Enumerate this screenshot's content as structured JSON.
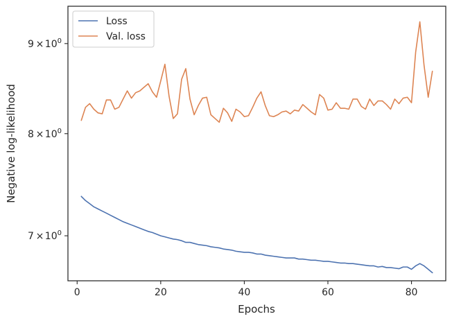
{
  "chart_data": {
    "type": "line",
    "xlabel": "Epochs",
    "ylabel": "Negative log-likelihood",
    "xlim": [
      -2.2,
      88.2
    ],
    "ylim": [
      6.6,
      9.45
    ],
    "y_scale": "log",
    "x_ticks": [
      {
        "value": 0,
        "label": "0"
      },
      {
        "value": 20,
        "label": "20"
      },
      {
        "value": 40,
        "label": "40"
      },
      {
        "value": 60,
        "label": "60"
      },
      {
        "value": 80,
        "label": "80"
      }
    ],
    "y_ticks": [
      {
        "value": 7,
        "base": "7",
        "mult": "10",
        "exp": "0"
      },
      {
        "value": 8,
        "base": "8",
        "mult": "10",
        "exp": "0"
      },
      {
        "value": 9,
        "base": "9",
        "mult": "10",
        "exp": "0"
      }
    ],
    "legend": {
      "position": "upper-left"
    },
    "grid": false,
    "x": [
      1,
      2,
      3,
      4,
      5,
      6,
      7,
      8,
      9,
      10,
      11,
      12,
      13,
      14,
      15,
      16,
      17,
      18,
      19,
      20,
      21,
      22,
      23,
      24,
      25,
      26,
      27,
      28,
      29,
      30,
      31,
      32,
      33,
      34,
      35,
      36,
      37,
      38,
      39,
      40,
      41,
      42,
      43,
      44,
      45,
      46,
      47,
      48,
      49,
      50,
      51,
      52,
      53,
      54,
      55,
      56,
      57,
      58,
      59,
      60,
      61,
      62,
      63,
      64,
      65,
      66,
      67,
      68,
      69,
      70,
      71,
      72,
      73,
      74,
      75,
      76,
      77,
      78,
      79,
      80,
      81,
      82,
      83,
      84,
      85
    ],
    "series": [
      {
        "name": "Loss",
        "color": "#4c72b0",
        "values": [
          7.37,
          7.33,
          7.3,
          7.27,
          7.25,
          7.23,
          7.21,
          7.19,
          7.17,
          7.15,
          7.13,
          7.115,
          7.1,
          7.085,
          7.07,
          7.055,
          7.04,
          7.03,
          7.015,
          7.0,
          6.99,
          6.98,
          6.97,
          6.965,
          6.955,
          6.94,
          6.94,
          6.93,
          6.92,
          6.915,
          6.91,
          6.9,
          6.895,
          6.89,
          6.88,
          6.875,
          6.87,
          6.86,
          6.855,
          6.85,
          6.85,
          6.845,
          6.835,
          6.835,
          6.825,
          6.82,
          6.815,
          6.81,
          6.805,
          6.8,
          6.8,
          6.8,
          6.79,
          6.79,
          6.785,
          6.78,
          6.78,
          6.775,
          6.77,
          6.77,
          6.765,
          6.76,
          6.755,
          6.755,
          6.75,
          6.75,
          6.745,
          6.74,
          6.735,
          6.73,
          6.73,
          6.72,
          6.725,
          6.715,
          6.715,
          6.71,
          6.705,
          6.72,
          6.72,
          6.7,
          6.73,
          6.75,
          6.73,
          6.7,
          6.67
        ]
      },
      {
        "name": "Val. loss",
        "color": "#dd8452",
        "values": [
          8.14,
          8.28,
          8.32,
          8.26,
          8.22,
          8.21,
          8.36,
          8.36,
          8.26,
          8.28,
          8.37,
          8.46,
          8.38,
          8.44,
          8.46,
          8.5,
          8.54,
          8.45,
          8.39,
          8.57,
          8.76,
          8.4,
          8.16,
          8.21,
          8.59,
          8.71,
          8.37,
          8.2,
          8.3,
          8.38,
          8.39,
          8.2,
          8.16,
          8.12,
          8.27,
          8.22,
          8.13,
          8.26,
          8.23,
          8.18,
          8.19,
          8.28,
          8.38,
          8.45,
          8.3,
          8.19,
          8.18,
          8.2,
          8.23,
          8.24,
          8.21,
          8.25,
          8.24,
          8.31,
          8.27,
          8.23,
          8.2,
          8.42,
          8.38,
          8.25,
          8.26,
          8.33,
          8.27,
          8.27,
          8.26,
          8.37,
          8.37,
          8.29,
          8.26,
          8.37,
          8.3,
          8.35,
          8.35,
          8.31,
          8.26,
          8.37,
          8.32,
          8.38,
          8.39,
          8.33,
          8.9,
          9.26,
          8.75,
          8.39,
          8.68
        ]
      }
    ]
  }
}
